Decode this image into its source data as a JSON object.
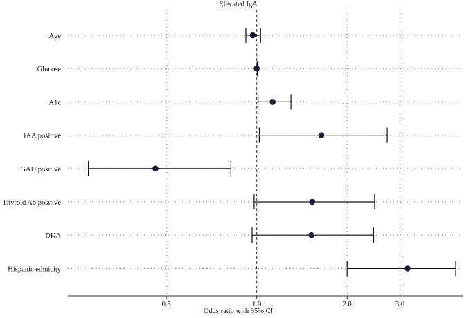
{
  "chart_data": {
    "type": "forest",
    "title": "Elevated IgA",
    "xlabel": "Odds ratio with 95% CI",
    "x_scale": "log",
    "xlim": [
      0.235,
      4.85
    ],
    "reference_line": 1.0,
    "xticks": [
      0.5,
      1.0,
      2.0,
      3.0
    ],
    "xtick_labels": [
      "0.5",
      "1.0",
      "2.0",
      "3.0"
    ],
    "categories": [
      "Age",
      "Glucose",
      "A1c",
      "IAA positive",
      "GAD positive",
      "Thyroid Ab positive",
      "DKA",
      "Hispanic ethnicity"
    ],
    "estimates": [
      0.97,
      1.0,
      1.13,
      1.64,
      0.46,
      1.53,
      1.52,
      3.18
    ],
    "ci_lower": [
      0.92,
      0.995,
      1.01,
      1.02,
      0.275,
      0.98,
      0.965,
      2.0
    ],
    "ci_upper": [
      1.03,
      1.005,
      1.3,
      2.72,
      0.82,
      2.47,
      2.45,
      4.6
    ]
  }
}
